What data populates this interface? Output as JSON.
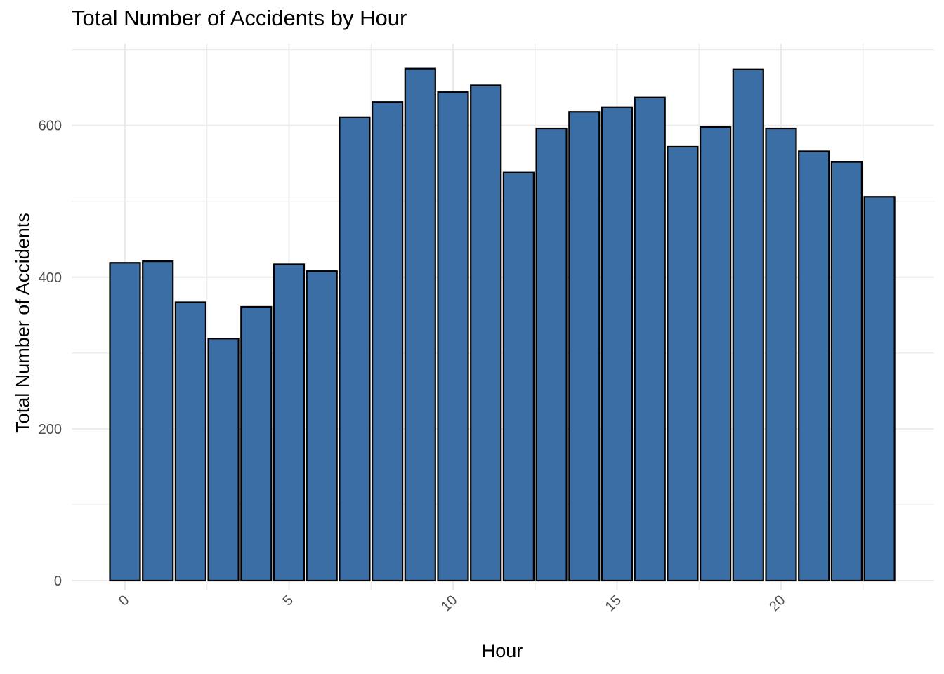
{
  "chart_data": {
    "type": "bar",
    "title": "Total Number of Accidents by Hour",
    "xlabel": "Hour",
    "ylabel": "Total Number of Accidents",
    "categories": [
      0,
      1,
      2,
      3,
      4,
      5,
      6,
      7,
      8,
      9,
      10,
      11,
      12,
      13,
      14,
      15,
      16,
      17,
      18,
      19,
      20,
      21,
      22,
      23
    ],
    "values": [
      419,
      421,
      367,
      319,
      361,
      417,
      408,
      611,
      631,
      675,
      644,
      653,
      538,
      596,
      618,
      624,
      637,
      572,
      598,
      674,
      596,
      566,
      552,
      506
    ],
    "x_ticks": [
      0,
      5,
      10,
      15,
      20
    ],
    "y_ticks": [
      0,
      200,
      400,
      600
    ],
    "xlim": [
      -0.5,
      23.5
    ],
    "ylim": [
      0,
      700
    ],
    "grid": true,
    "colors": {
      "bar_fill": "#3a6ea5",
      "bar_stroke": "#000000",
      "grid": "#ebebeb",
      "tick_text": "#4d4d4d"
    }
  }
}
